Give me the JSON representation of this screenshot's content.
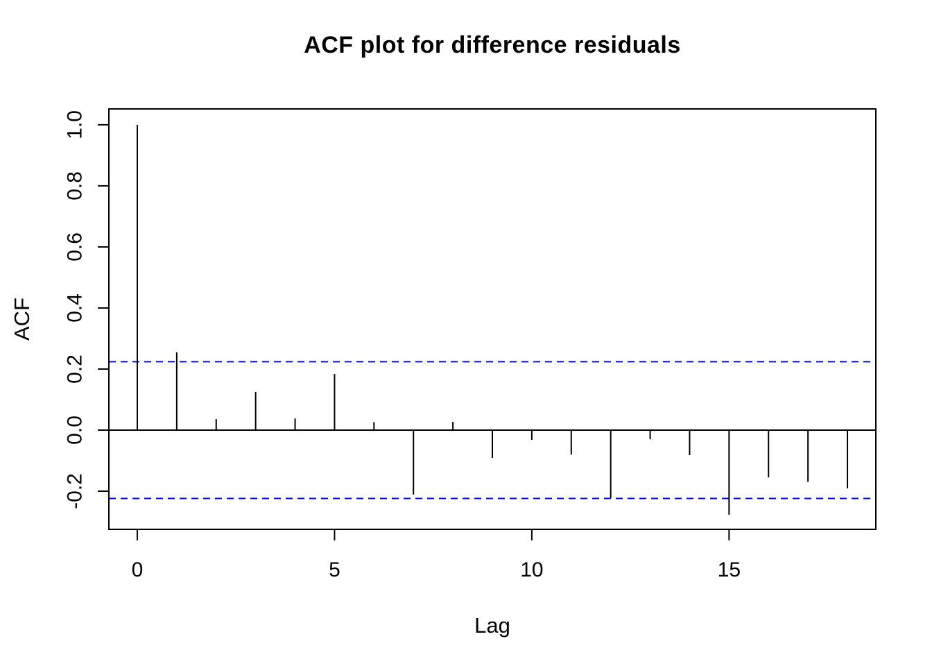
{
  "chart_data": {
    "type": "stem",
    "title": "ACF plot for difference residuals",
    "xlabel": "Lag",
    "ylabel": "ACF",
    "lags": [
      0,
      1,
      2,
      3,
      4,
      5,
      6,
      7,
      8,
      9,
      10,
      11,
      12,
      13,
      14,
      15,
      16,
      17,
      18
    ],
    "acf_values": [
      1.0,
      0.255,
      0.036,
      0.125,
      0.038,
      0.184,
      0.026,
      -0.211,
      0.027,
      -0.091,
      -0.032,
      -0.08,
      -0.223,
      -0.03,
      -0.082,
      -0.277,
      -0.155,
      -0.17,
      -0.191
    ],
    "confidence_bands": {
      "upper": 0.224,
      "lower": -0.224,
      "line_style": "dashed",
      "color": "#0000ff"
    },
    "zero_line": true,
    "grid": false,
    "legend": null,
    "xlim": [
      -0.72,
      18.72
    ],
    "ylim": [
      -0.325,
      1.052
    ],
    "xticks": [
      0,
      5,
      10,
      15
    ],
    "xtick_labels": [
      "0",
      "5",
      "10",
      "15"
    ],
    "yticks": [
      -0.2,
      0.0,
      0.2,
      0.4,
      0.6,
      0.8,
      1.0
    ],
    "ytick_labels": [
      "-0.2",
      "0.0",
      "0.2",
      "0.4",
      "0.6",
      "0.8",
      "1.0"
    ],
    "stem_color": "#000000",
    "axis_color": "#000000",
    "background_color": "#ffffff"
  }
}
